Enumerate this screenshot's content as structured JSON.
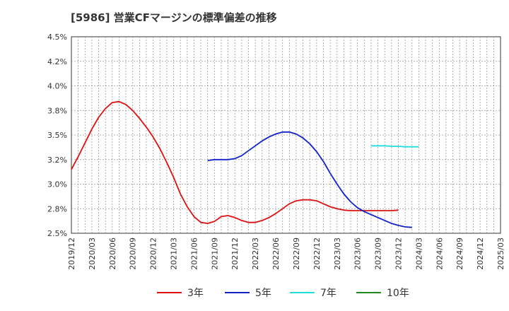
{
  "chart_data": {
    "type": "line",
    "title": "[5986]  営業CFマージンの標準偏差の推移",
    "xlabel": "",
    "ylabel": "",
    "ylim": [
      2.5,
      4.5
    ],
    "y_ticks": [
      "2.5%",
      "2.8%",
      "3.0%",
      "3.2%",
      "3.5%",
      "3.8%",
      "4.0%",
      "4.2%",
      "4.5%"
    ],
    "x_ticks": [
      "2019/12",
      "2020/03",
      "2020/06",
      "2020/09",
      "2020/12",
      "2021/03",
      "2021/06",
      "2021/09",
      "2021/12",
      "2022/03",
      "2022/06",
      "2022/09",
      "2022/12",
      "2023/03",
      "2023/06",
      "2023/09",
      "2023/12",
      "2024/03",
      "2024/06",
      "2024/09",
      "2024/12",
      "2025/03"
    ],
    "grid": true,
    "legend_position": "bottom",
    "colors": {
      "3年": "#dd1111",
      "5年": "#1122cc",
      "7年": "#22dddd",
      "10年": "#228822"
    },
    "series": [
      {
        "name": "3年",
        "start": "2019/12",
        "values": [
          3.15,
          3.28,
          3.42,
          3.56,
          3.68,
          3.77,
          3.83,
          3.84,
          3.81,
          3.75,
          3.67,
          3.58,
          3.48,
          3.36,
          3.22,
          3.07,
          2.9,
          2.77,
          2.67,
          2.61,
          2.6,
          2.62,
          2.67,
          2.68,
          2.66,
          2.63,
          2.61,
          2.61,
          2.63,
          2.66,
          2.7,
          2.75,
          2.8,
          2.83,
          2.84,
          2.84,
          2.83,
          2.8,
          2.77,
          2.75,
          2.735,
          2.73,
          2.73,
          2.73,
          2.73,
          2.73,
          2.73,
          2.73,
          2.735
        ]
      },
      {
        "name": "5年",
        "start": "2021/08",
        "values": [
          3.24,
          3.25,
          3.25,
          3.25,
          3.26,
          3.29,
          3.34,
          3.39,
          3.44,
          3.48,
          3.51,
          3.53,
          3.53,
          3.51,
          3.47,
          3.41,
          3.33,
          3.23,
          3.11,
          3.0,
          2.9,
          2.82,
          2.76,
          2.72,
          2.69,
          2.66,
          2.63,
          2.6,
          2.58,
          2.565,
          2.56
        ]
      },
      {
        "name": "7年",
        "start": "2023/08",
        "values": [
          3.39,
          3.39,
          3.39,
          3.385,
          3.385,
          3.38,
          3.38,
          3.38
        ]
      },
      {
        "name": "10年",
        "start": "",
        "values": []
      }
    ]
  }
}
